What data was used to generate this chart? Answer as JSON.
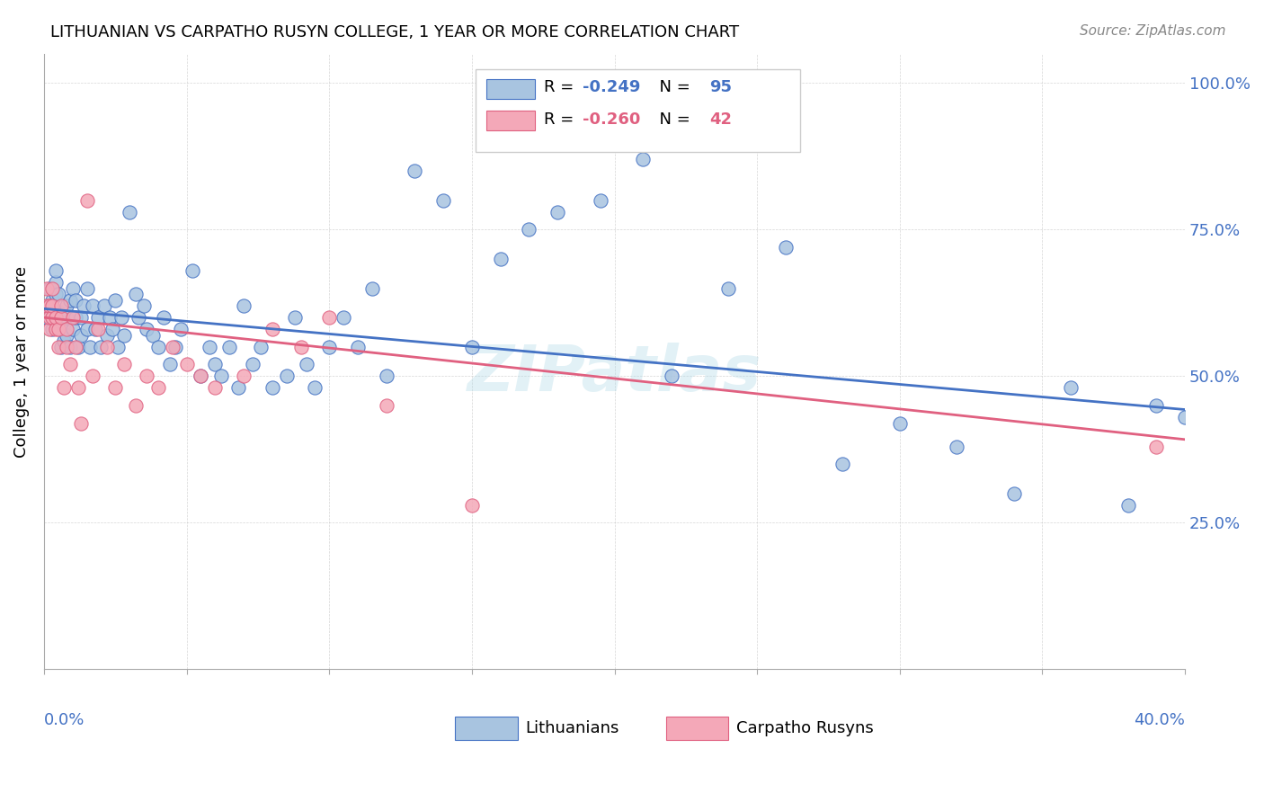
{
  "title": "LITHUANIAN VS CARPATHO RUSYN COLLEGE, 1 YEAR OR MORE CORRELATION CHART",
  "source": "Source: ZipAtlas.com",
  "ylabel": "College, 1 year or more",
  "xmin": 0.0,
  "xmax": 0.4,
  "ymin": 0.0,
  "ymax": 1.05,
  "yticks": [
    0.25,
    0.5,
    0.75,
    1.0
  ],
  "ytick_labels": [
    "25.0%",
    "50.0%",
    "75.0%",
    "100.0%"
  ],
  "blue_color": "#a8c4e0",
  "pink_color": "#f4a8b8",
  "blue_line_color": "#4472C4",
  "pink_line_color": "#E06080",
  "watermark": "ZIPatlas",
  "blue_r": "-0.249",
  "blue_n": "95",
  "pink_r": "-0.260",
  "pink_n": "42",
  "blue_line_y_intercept": 0.615,
  "blue_line_slope": -0.43,
  "pink_line_y_intercept": 0.6,
  "pink_line_slope": -0.52,
  "blue_scatter_x": [
    0.001,
    0.002,
    0.002,
    0.003,
    0.003,
    0.003,
    0.004,
    0.004,
    0.004,
    0.005,
    0.005,
    0.005,
    0.006,
    0.006,
    0.006,
    0.007,
    0.007,
    0.008,
    0.008,
    0.008,
    0.009,
    0.009,
    0.01,
    0.01,
    0.011,
    0.011,
    0.012,
    0.013,
    0.013,
    0.014,
    0.015,
    0.015,
    0.016,
    0.017,
    0.018,
    0.019,
    0.02,
    0.021,
    0.022,
    0.023,
    0.024,
    0.025,
    0.026,
    0.027,
    0.028,
    0.03,
    0.032,
    0.033,
    0.035,
    0.036,
    0.038,
    0.04,
    0.042,
    0.044,
    0.046,
    0.048,
    0.052,
    0.055,
    0.058,
    0.06,
    0.062,
    0.065,
    0.068,
    0.07,
    0.073,
    0.076,
    0.08,
    0.085,
    0.088,
    0.092,
    0.095,
    0.1,
    0.105,
    0.11,
    0.115,
    0.12,
    0.13,
    0.14,
    0.15,
    0.16,
    0.17,
    0.18,
    0.195,
    0.21,
    0.22,
    0.24,
    0.26,
    0.28,
    0.3,
    0.32,
    0.34,
    0.36,
    0.38,
    0.39,
    0.4
  ],
  "blue_scatter_y": [
    0.6,
    0.62,
    0.65,
    0.58,
    0.6,
    0.63,
    0.64,
    0.66,
    0.68,
    0.6,
    0.61,
    0.64,
    0.55,
    0.58,
    0.6,
    0.56,
    0.59,
    0.62,
    0.57,
    0.6,
    0.63,
    0.55,
    0.65,
    0.58,
    0.6,
    0.63,
    0.55,
    0.57,
    0.6,
    0.62,
    0.58,
    0.65,
    0.55,
    0.62,
    0.58,
    0.6,
    0.55,
    0.62,
    0.57,
    0.6,
    0.58,
    0.63,
    0.55,
    0.6,
    0.57,
    0.78,
    0.64,
    0.6,
    0.62,
    0.58,
    0.57,
    0.55,
    0.6,
    0.52,
    0.55,
    0.58,
    0.68,
    0.5,
    0.55,
    0.52,
    0.5,
    0.55,
    0.48,
    0.62,
    0.52,
    0.55,
    0.48,
    0.5,
    0.6,
    0.52,
    0.48,
    0.55,
    0.6,
    0.55,
    0.65,
    0.5,
    0.85,
    0.8,
    0.55,
    0.7,
    0.75,
    0.78,
    0.8,
    0.87,
    0.5,
    0.65,
    0.72,
    0.35,
    0.42,
    0.38,
    0.3,
    0.48,
    0.28,
    0.45,
    0.43
  ],
  "pink_scatter_x": [
    0.001,
    0.001,
    0.002,
    0.002,
    0.002,
    0.003,
    0.003,
    0.003,
    0.004,
    0.004,
    0.005,
    0.005,
    0.006,
    0.006,
    0.007,
    0.008,
    0.008,
    0.009,
    0.01,
    0.011,
    0.012,
    0.013,
    0.015,
    0.017,
    0.019,
    0.022,
    0.025,
    0.028,
    0.032,
    0.036,
    0.04,
    0.045,
    0.05,
    0.055,
    0.06,
    0.07,
    0.08,
    0.09,
    0.1,
    0.12,
    0.15,
    0.39
  ],
  "pink_scatter_y": [
    0.62,
    0.65,
    0.58,
    0.6,
    0.62,
    0.6,
    0.62,
    0.65,
    0.58,
    0.6,
    0.55,
    0.58,
    0.6,
    0.62,
    0.48,
    0.55,
    0.58,
    0.52,
    0.6,
    0.55,
    0.48,
    0.42,
    0.8,
    0.5,
    0.58,
    0.55,
    0.48,
    0.52,
    0.45,
    0.5,
    0.48,
    0.55,
    0.52,
    0.5,
    0.48,
    0.5,
    0.58,
    0.55,
    0.6,
    0.45,
    0.28,
    0.38
  ]
}
